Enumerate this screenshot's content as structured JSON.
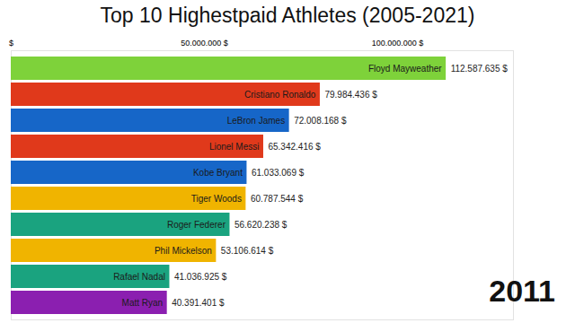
{
  "chart_data": {
    "type": "bar",
    "title": "Top 10 Highestpaid Athletes (2005-2021)",
    "orientation": "horizontal",
    "categories": [
      "Floyd Mayweather",
      "Cristiano Ronaldo",
      "LeBron James",
      "Lionel Messi",
      "Kobe Bryant",
      "Tiger Woods",
      "Roger Federer",
      "Phil Mickelson",
      "Rafael Nadal",
      "Matt Ryan"
    ],
    "values": [
      112587635,
      79984436,
      72008168,
      65342416,
      61033069,
      60787544,
      56620238,
      53106614,
      41036925,
      40391401
    ],
    "value_labels": [
      "112.587.635 $",
      "79.984.436 $",
      "72.008.168 $",
      "65.342.416 $",
      "61.033.069 $",
      "60.787.544 $",
      "56.620.238 $",
      "53.106.614 $",
      "41.036.925 $",
      "40.391.401 $"
    ],
    "colors": [
      "#7ed23a",
      "#e0391b",
      "#1666c8",
      "#e0391b",
      "#1666c8",
      "#f0b400",
      "#1aa37f",
      "#f0b400",
      "#1aa37f",
      "#8b1fb0"
    ],
    "xlim": [
      0,
      130000000
    ],
    "xticks": [
      {
        "value": 0,
        "label": "$"
      },
      {
        "value": 50000000,
        "label": "50.000.000 $"
      },
      {
        "value": 100000000,
        "label": "100.000.000 $"
      }
    ],
    "data_labels": true,
    "grid": false,
    "annotation": "2011"
  }
}
